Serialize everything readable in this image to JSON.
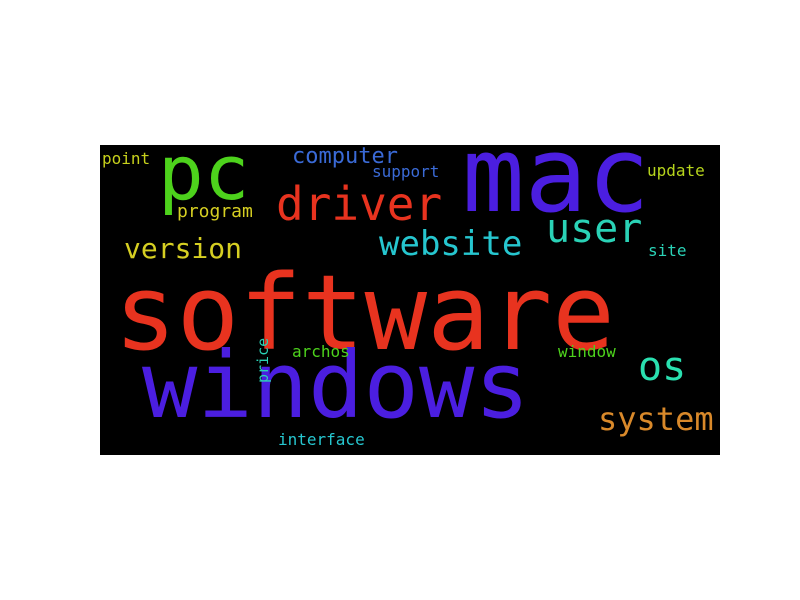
{
  "words": [
    {
      "key": "software",
      "text": "software",
      "color": "#e8331f"
    },
    {
      "key": "windows",
      "text": "windows",
      "color": "#4b1ee0"
    },
    {
      "key": "mac",
      "text": "mac",
      "color": "#4b1ee0"
    },
    {
      "key": "pc",
      "text": "pc",
      "color": "#4dd21c"
    },
    {
      "key": "driver",
      "text": "driver",
      "color": "#e8331f"
    },
    {
      "key": "user",
      "text": "user",
      "color": "#2ad2b6"
    },
    {
      "key": "website",
      "text": "website",
      "color": "#26c6cf"
    },
    {
      "key": "os",
      "text": "os",
      "color": "#2ae0b0"
    },
    {
      "key": "system",
      "text": "system",
      "color": "#d9892a"
    },
    {
      "key": "version",
      "text": "version",
      "color": "#d6cf22"
    },
    {
      "key": "computer",
      "text": "computer",
      "color": "#3a6ad6"
    },
    {
      "key": "program",
      "text": "program",
      "color": "#d6cf22"
    },
    {
      "key": "support",
      "text": "support",
      "color": "#3a6ad6"
    },
    {
      "key": "point",
      "text": "point",
      "color": "#c7d11c"
    },
    {
      "key": "update",
      "text": "update",
      "color": "#b6d41c"
    },
    {
      "key": "site",
      "text": "site",
      "color": "#2ad2b6"
    },
    {
      "key": "window",
      "text": "window",
      "color": "#4dd21c"
    },
    {
      "key": "archos",
      "text": "archos",
      "color": "#4dd21c"
    },
    {
      "key": "price",
      "text": "price",
      "color": "#2ad2b6"
    },
    {
      "key": "interface",
      "text": "interface",
      "color": "#26c6cf"
    }
  ]
}
